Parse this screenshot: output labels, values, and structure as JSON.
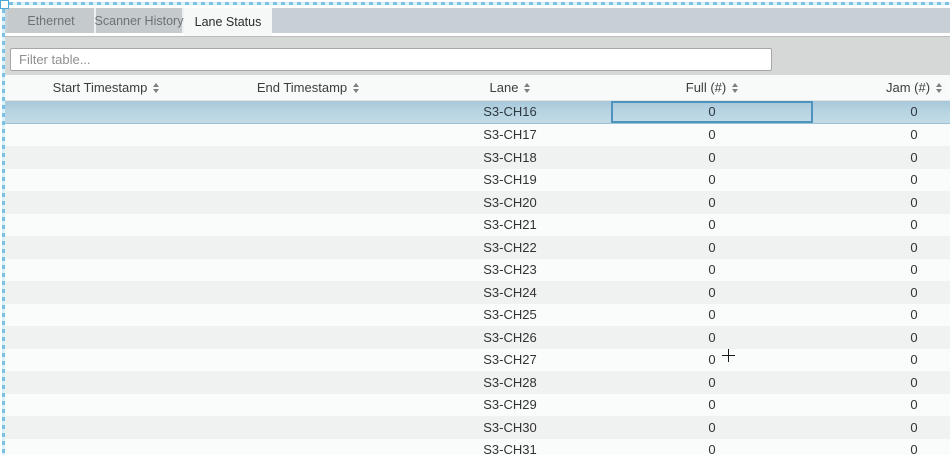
{
  "tabs": [
    {
      "label": "Ethernet",
      "active": false
    },
    {
      "label": "Scanner History",
      "active": false
    },
    {
      "label": "Lane Status",
      "active": true
    }
  ],
  "filter": {
    "placeholder": "Filter table..."
  },
  "table": {
    "columns": [
      "Start Timestamp",
      "End Timestamp",
      "Lane",
      "Full (#)",
      "Jam (#)"
    ],
    "rows": [
      {
        "start": "",
        "end": "",
        "lane": "S3-CH16",
        "full": "0",
        "jam": "0"
      },
      {
        "start": "",
        "end": "",
        "lane": "S3-CH17",
        "full": "0",
        "jam": "0"
      },
      {
        "start": "",
        "end": "",
        "lane": "S3-CH18",
        "full": "0",
        "jam": "0"
      },
      {
        "start": "",
        "end": "",
        "lane": "S3-CH19",
        "full": "0",
        "jam": "0"
      },
      {
        "start": "",
        "end": "",
        "lane": "S3-CH20",
        "full": "0",
        "jam": "0"
      },
      {
        "start": "",
        "end": "",
        "lane": "S3-CH21",
        "full": "0",
        "jam": "0"
      },
      {
        "start": "",
        "end": "",
        "lane": "S3-CH22",
        "full": "0",
        "jam": "0"
      },
      {
        "start": "",
        "end": "",
        "lane": "S3-CH23",
        "full": "0",
        "jam": "0"
      },
      {
        "start": "",
        "end": "",
        "lane": "S3-CH24",
        "full": "0",
        "jam": "0"
      },
      {
        "start": "",
        "end": "",
        "lane": "S3-CH25",
        "full": "0",
        "jam": "0"
      },
      {
        "start": "",
        "end": "",
        "lane": "S3-CH26",
        "full": "0",
        "jam": "0"
      },
      {
        "start": "",
        "end": "",
        "lane": "S3-CH27",
        "full": "0",
        "jam": "0"
      },
      {
        "start": "",
        "end": "",
        "lane": "S3-CH28",
        "full": "0",
        "jam": "0"
      },
      {
        "start": "",
        "end": "",
        "lane": "S3-CH29",
        "full": "0",
        "jam": "0"
      },
      {
        "start": "",
        "end": "",
        "lane": "S3-CH30",
        "full": "0",
        "jam": "0"
      },
      {
        "start": "",
        "end": "",
        "lane": "S3-CH31",
        "full": "0",
        "jam": "0"
      }
    ],
    "selected_row_lane": "S3-CH16",
    "focused_cell": {
      "row_lane": "S3-CH16",
      "column": "Full (#)"
    }
  },
  "colors": {
    "selection_marquee": "#79c2e6",
    "selected_row_top": "#a7c8da",
    "selected_row_bottom": "#c1dbe7",
    "focused_cell_border": "#4e94bf",
    "tab_strip": "#c7d0d5",
    "active_tab": "#f6f7f7"
  }
}
